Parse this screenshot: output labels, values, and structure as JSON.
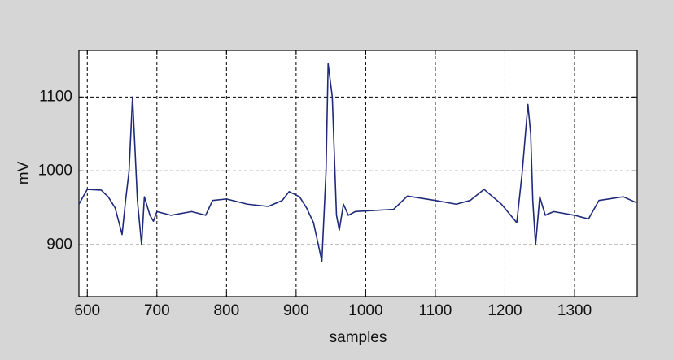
{
  "chart_data": {
    "type": "line",
    "x_label": "samples",
    "y_label": "mV",
    "xlim": [
      588,
      1390
    ],
    "ylim": [
      830,
      1163
    ],
    "xticks": [
      600,
      700,
      800,
      900,
      1000,
      1100,
      1200,
      1300
    ],
    "yticks": [
      900,
      1000,
      1100
    ],
    "grid": true,
    "x": [
      588,
      600,
      620,
      630,
      640,
      650,
      655,
      660,
      665,
      672,
      678,
      682,
      690,
      695,
      700,
      720,
      750,
      770,
      780,
      800,
      830,
      860,
      880,
      890,
      905,
      915,
      925,
      937,
      943,
      946,
      952,
      958,
      962,
      968,
      975,
      985,
      1040,
      1060,
      1100,
      1130,
      1150,
      1170,
      1195,
      1217,
      1225,
      1233,
      1237,
      1240,
      1244,
      1250,
      1258,
      1270,
      1300,
      1320,
      1335,
      1370,
      1389
    ],
    "series": [
      {
        "color": "#1f2a7a",
        "values": [
          955,
          975,
          974,
          965,
          950,
          914,
          960,
          1000,
          1100,
          960,
          900,
          965,
          940,
          932,
          945,
          940,
          945,
          940,
          960,
          962,
          955,
          952,
          960,
          972,
          965,
          950,
          930,
          878,
          1000,
          1145,
          1100,
          940,
          920,
          955,
          940,
          945,
          948,
          966,
          960,
          955,
          960,
          975,
          955,
          930,
          1000,
          1090,
          1050,
          960,
          900,
          965,
          940,
          945,
          940,
          935,
          960,
          965,
          957
        ]
      }
    ]
  }
}
